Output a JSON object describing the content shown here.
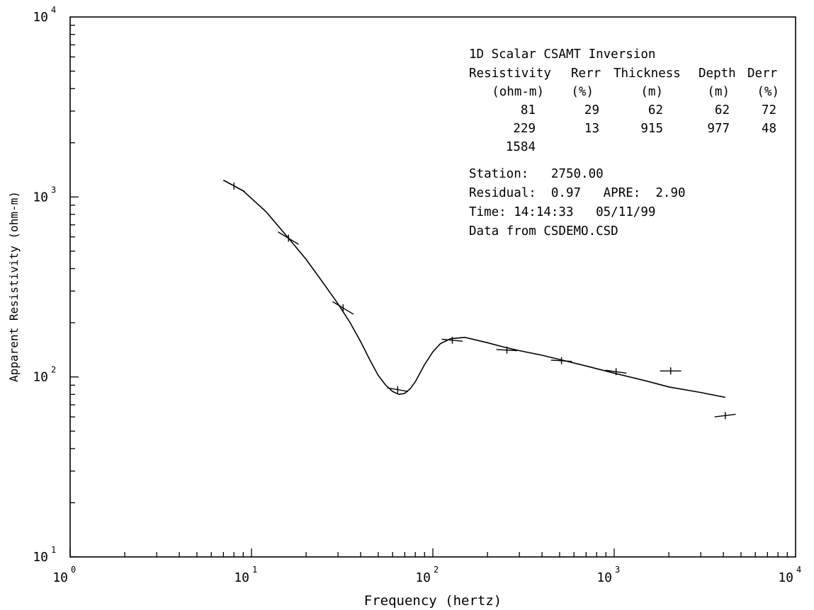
{
  "chart_data": {
    "type": "line",
    "title": "",
    "xlabel": "Frequency (hertz)",
    "ylabel": "Apparent Resistivity (ohm-m)",
    "xscale": "log",
    "yscale": "log",
    "xlim": [
      1,
      10000
    ],
    "ylim": [
      10,
      10000
    ],
    "grid": false,
    "x_ticks": [
      {
        "value": 1,
        "base": "10",
        "exp": "0"
      },
      {
        "value": 10,
        "base": "10",
        "exp": "1"
      },
      {
        "value": 100,
        "base": "10",
        "exp": "2"
      },
      {
        "value": 1000,
        "base": "10",
        "exp": "3"
      },
      {
        "value": 10000,
        "base": "10",
        "exp": "4"
      }
    ],
    "y_ticks": [
      {
        "value": 10,
        "base": "10",
        "exp": "1"
      },
      {
        "value": 100,
        "base": "10",
        "exp": "2"
      },
      {
        "value": 1000,
        "base": "10",
        "exp": "3"
      },
      {
        "value": 10000,
        "base": "10",
        "exp": "4"
      }
    ],
    "observed": [
      {
        "x": 8,
        "y": 1150,
        "x0": 7,
        "y0": 1240,
        "x1": 9.2,
        "y1": 1070
      },
      {
        "x": 16,
        "y": 590,
        "x0": 14,
        "y0": 640,
        "x1": 18.2,
        "y1": 545
      },
      {
        "x": 32,
        "y": 242,
        "x0": 28,
        "y0": 262,
        "x1": 36.5,
        "y1": 223
      },
      {
        "x": 64,
        "y": 85,
        "x0": 56,
        "y0": 87,
        "x1": 73,
        "y1": 83
      },
      {
        "x": 128,
        "y": 160,
        "x0": 112,
        "y0": 162,
        "x1": 146,
        "y1": 158
      },
      {
        "x": 256,
        "y": 141,
        "x0": 224,
        "y0": 142,
        "x1": 292,
        "y1": 140
      },
      {
        "x": 512,
        "y": 123,
        "x0": 448,
        "y0": 124,
        "x1": 584,
        "y1": 122
      },
      {
        "x": 1024,
        "y": 107,
        "x0": 896,
        "y0": 109,
        "x1": 1168,
        "y1": 105
      },
      {
        "x": 2048,
        "y": 108,
        "x0": 1790,
        "y0": 108,
        "x1": 2340,
        "y1": 108
      },
      {
        "x": 4096,
        "y": 61,
        "x0": 3580,
        "y0": 60,
        "x1": 4680,
        "y1": 62
      }
    ],
    "model_curve": {
      "x": [
        7,
        9,
        12,
        16,
        20,
        25,
        30,
        35,
        40,
        45,
        50,
        55,
        60,
        65,
        70,
        75,
        80,
        90,
        100,
        110,
        125,
        150,
        200,
        250,
        300,
        400,
        500,
        700,
        1000,
        1500,
        2000,
        3000,
        4096
      ],
      "y": [
        1240,
        1080,
        830,
        590,
        450,
        330,
        255,
        200,
        157,
        124,
        102,
        90,
        83,
        80,
        81,
        86,
        94,
        117,
        138,
        153,
        163,
        166,
        155,
        146,
        140,
        132,
        125,
        115,
        105,
        95,
        88,
        82,
        77
      ]
    },
    "annotations": {
      "inversion": {
        "title": "1D Scalar CSAMT Inversion",
        "headers": [
          "Resistivity",
          "Rerr",
          "Thickness",
          "Depth",
          "Derr"
        ],
        "units": [
          "(ohm-m)",
          "(%)",
          "(m)",
          "(m)",
          "(%)"
        ],
        "rows": [
          [
            "81",
            "29",
            "62",
            "62",
            "72"
          ],
          [
            "229",
            "13",
            "915",
            "977",
            "48"
          ],
          [
            "1584",
            "",
            "",
            "",
            ""
          ]
        ]
      },
      "info": {
        "station": "Station:   2750.00",
        "residual": "Residual:  0.97   APRE:  2.90",
        "time": "Time: 14:14:33   05/11/99",
        "source": "Data from CSDEMO.CSD"
      }
    }
  }
}
